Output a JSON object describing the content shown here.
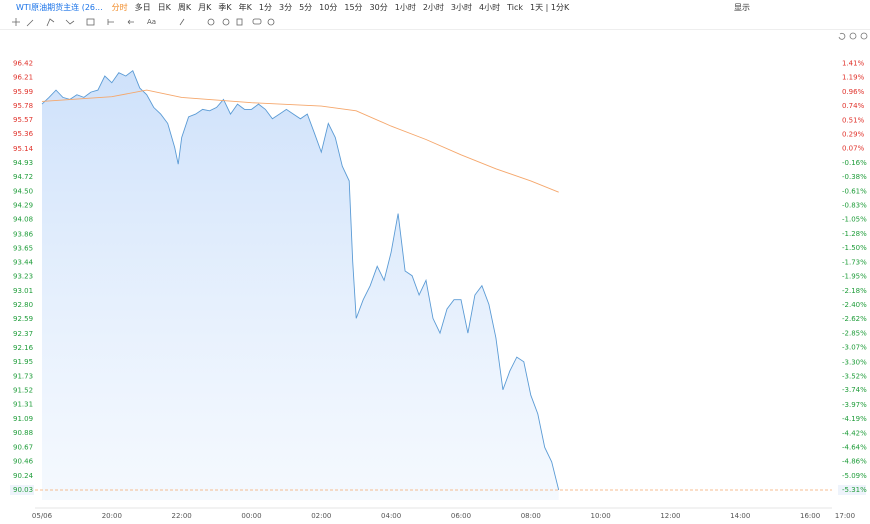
{
  "toolbar": {
    "symbol": "WTI原油期货主连 (26...",
    "periods": [
      "分时",
      "多日",
      "日K",
      "周K",
      "月K",
      "季K",
      "年K",
      "1分",
      "3分",
      "5分",
      "10分",
      "15分",
      "30分",
      "1小时",
      "2小时",
      "3小时",
      "4小时",
      "Tick"
    ],
    "active_period": 0,
    "interval": "1天 | 1分K",
    "display": "显示",
    "text_tool": "Aa"
  },
  "chart_data": {
    "type": "line",
    "series": [
      {
        "color": "#5b9bd5",
        "fill": true,
        "x": [
          0,
          0.2,
          0.4,
          0.6,
          0.8,
          1.0,
          1.2,
          1.4,
          1.6,
          1.8,
          2.0,
          2.2,
          2.4,
          2.6,
          2.8,
          3.0,
          3.2,
          3.4,
          3.6,
          3.8,
          3.9,
          4.0,
          4.2,
          4.4,
          4.6,
          4.8,
          5.0,
          5.2,
          5.4,
          5.6,
          5.8,
          6.0,
          6.2,
          6.4,
          6.6,
          6.8,
          7.0,
          7.2,
          7.4,
          7.6,
          7.8,
          8.0,
          8.2,
          8.4,
          8.6,
          8.8,
          8.9,
          9.0,
          9.2,
          9.4,
          9.6,
          9.8,
          10.0,
          10.2,
          10.4,
          10.6,
          10.8,
          11.0,
          11.2,
          11.4,
          11.6,
          11.8,
          12.0,
          12.2,
          12.4,
          12.6,
          12.8,
          13.0,
          13.2,
          13.4,
          13.6,
          13.8,
          14.0,
          14.2,
          14.4,
          14.6,
          14.8
        ],
        "values": [
          95.81,
          95.91,
          96.02,
          95.91,
          95.88,
          95.95,
          95.91,
          95.99,
          96.02,
          96.23,
          96.13,
          96.28,
          96.23,
          96.31,
          96.05,
          95.95,
          95.76,
          95.66,
          95.52,
          95.16,
          94.91,
          95.31,
          95.62,
          95.66,
          95.73,
          95.71,
          95.76,
          95.88,
          95.66,
          95.81,
          95.73,
          95.73,
          95.81,
          95.73,
          95.59,
          95.66,
          95.73,
          95.66,
          95.59,
          95.66,
          95.38,
          95.09,
          95.52,
          95.31,
          94.88,
          94.66,
          93.45,
          92.6,
          92.88,
          93.09,
          93.38,
          93.17,
          93.59,
          94.17,
          93.31,
          93.24,
          92.95,
          93.17,
          92.6,
          92.38,
          92.74,
          92.88,
          92.88,
          92.38,
          92.95,
          93.09,
          92.81,
          92.31,
          91.53,
          91.81,
          92.02,
          91.95,
          91.45,
          91.17,
          90.67,
          90.45,
          90.03
        ]
      },
      {
        "color": "#f5a76c",
        "fill": false,
        "x": [
          0,
          2,
          3,
          4,
          6,
          8,
          9,
          10,
          11,
          12,
          13,
          14,
          14.8
        ],
        "values": [
          95.85,
          95.92,
          96.02,
          95.91,
          95.83,
          95.78,
          95.71,
          95.48,
          95.28,
          95.05,
          94.84,
          94.66,
          94.49
        ]
      }
    ],
    "last_price": {
      "value": 90.03,
      "change": "-5.31%",
      "color": "#f5a76c"
    },
    "xlim": [
      0,
      23
    ],
    "xticks": [
      {
        "value": 0,
        "label": "05/06"
      },
      {
        "value": 2,
        "label": "20:00"
      },
      {
        "value": 4,
        "label": "22:00"
      },
      {
        "value": 6,
        "label": "00:00"
      },
      {
        "value": 8,
        "label": "02:00"
      },
      {
        "value": 10,
        "label": "04:00"
      },
      {
        "value": 12,
        "label": "06:00"
      },
      {
        "value": 14,
        "label": "08:00"
      },
      {
        "value": 16,
        "label": "10:00"
      },
      {
        "value": 18,
        "label": "12:00"
      },
      {
        "value": 20,
        "label": "14:00"
      },
      {
        "value": 22,
        "label": "16:00"
      },
      {
        "value": 23,
        "label": "17:00"
      }
    ],
    "ylim": [
      89.88,
      96.59
    ],
    "yticks": [
      96.42,
      96.21,
      95.99,
      95.78,
      95.57,
      95.36,
      95.14,
      94.93,
      94.72,
      {
        "value": 94.5,
        "label": "94.50"
      },
      94.29,
      94.08,
      93.86,
      93.65,
      93.44,
      93.23,
      93.01,
      {
        "value": 92.8,
        "label": "92.80"
      },
      92.59,
      92.37,
      92.16,
      91.95,
      91.73,
      91.52,
      91.31,
      91.09,
      90.88,
      90.67,
      90.46,
      90.24
    ],
    "y2lim": [
      -5.47,
      1.59
    ],
    "y2ticks": [
      {
        "value": 1.41,
        "label": "1.41%"
      },
      {
        "value": 1.19,
        "label": "1.19%"
      },
      {
        "value": 0.96,
        "label": "0.96%"
      },
      {
        "value": 0.74,
        "label": "0.74%"
      },
      {
        "value": 0.51,
        "label": "0.51%"
      },
      {
        "value": 0.29,
        "label": "0.29%"
      },
      {
        "value": 0.07,
        "label": "0.07%"
      },
      {
        "value": -0.16,
        "label": "-0.16%"
      },
      {
        "value": -0.38,
        "label": "-0.38%"
      },
      {
        "value": -0.61,
        "label": "-0.61%"
      },
      {
        "value": -0.83,
        "label": "-0.83%"
      },
      {
        "value": -1.05,
        "label": "-1.05%"
      },
      {
        "value": -1.28,
        "label": "-1.28%"
      },
      {
        "value": -1.5,
        "label": "-1.50%"
      },
      {
        "value": -1.73,
        "label": "-1.73%"
      },
      {
        "value": -1.95,
        "label": "-1.95%"
      },
      {
        "value": -2.18,
        "label": "-2.18%"
      },
      {
        "value": -2.4,
        "label": "-2.40%"
      },
      {
        "value": -2.62,
        "label": "-2.62%"
      },
      {
        "value": -2.85,
        "label": "-2.85%"
      },
      {
        "value": -3.07,
        "label": "-3.07%"
      },
      {
        "value": -3.3,
        "label": "-3.30%"
      },
      {
        "value": -3.52,
        "label": "-3.52%"
      },
      {
        "value": -3.74,
        "label": "-3.74%"
      },
      {
        "value": -3.97,
        "label": "-3.97%"
      },
      {
        "value": -4.19,
        "label": "-4.19%"
      },
      {
        "value": -4.42,
        "label": "-4.42%"
      },
      {
        "value": -4.64,
        "label": "-4.64%"
      },
      {
        "value": -4.86,
        "label": "-4.86%"
      },
      {
        "value": -5.09,
        "label": "-5.09%"
      }
    ],
    "up_color": "#e0322b",
    "down_color": "#1f9d3a"
  }
}
